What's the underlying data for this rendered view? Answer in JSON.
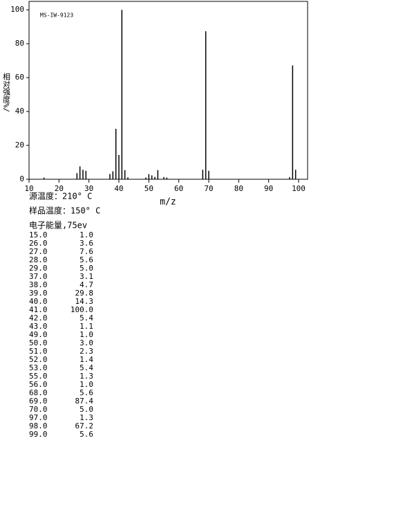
{
  "chart_data": {
    "type": "bar",
    "annotation": "MS-IW-9123",
    "x_label": "m/z",
    "y_label": "相对强度%/",
    "x": [
      15,
      26,
      27,
      28,
      29,
      37,
      38,
      39,
      40,
      41,
      42,
      43,
      49,
      50,
      51,
      52,
      53,
      55,
      56,
      68,
      69,
      70,
      97,
      98,
      99
    ],
    "x_labels": [
      "15.0",
      "26.0",
      "27.0",
      "28.0",
      "29.0",
      "37.0",
      "38.0",
      "39.0",
      "40.0",
      "41.0",
      "42.0",
      "43.0",
      "49.0",
      "50.0",
      "51.0",
      "52.0",
      "53.0",
      "55.0",
      "56.0",
      "68.0",
      "69.0",
      "70.0",
      "97.0",
      "98.0",
      "99.0"
    ],
    "values": [
      1.0,
      3.6,
      7.6,
      5.6,
      5.0,
      3.1,
      4.7,
      29.8,
      14.3,
      100.0,
      5.4,
      1.1,
      1.0,
      3.0,
      2.3,
      1.4,
      5.4,
      1.3,
      1.0,
      5.6,
      87.4,
      5.0,
      1.3,
      67.2,
      5.6
    ],
    "value_labels": [
      "1.0",
      "3.6",
      "7.6",
      "5.6",
      "5.0",
      "3.1",
      "4.7",
      "29.8",
      "14.3",
      "100.0",
      "5.4",
      "1.1",
      "1.0",
      "3.0",
      "2.3",
      "1.4",
      "5.4",
      "1.3",
      "1.0",
      "5.6",
      "87.4",
      "5.0",
      "1.3",
      "67.2",
      "5.6"
    ],
    "color": "#000000",
    "xlim": [
      10,
      103
    ],
    "xticks": [
      10,
      20,
      30,
      40,
      50,
      60,
      70,
      80,
      90,
      100
    ],
    "ylim": [
      0,
      105
    ],
    "yticks": [
      0,
      20,
      40,
      60,
      80,
      100
    ]
  },
  "info": [
    "源温度：210° C",
    "样品温度：150° C",
    "电子能量,75ev"
  ]
}
